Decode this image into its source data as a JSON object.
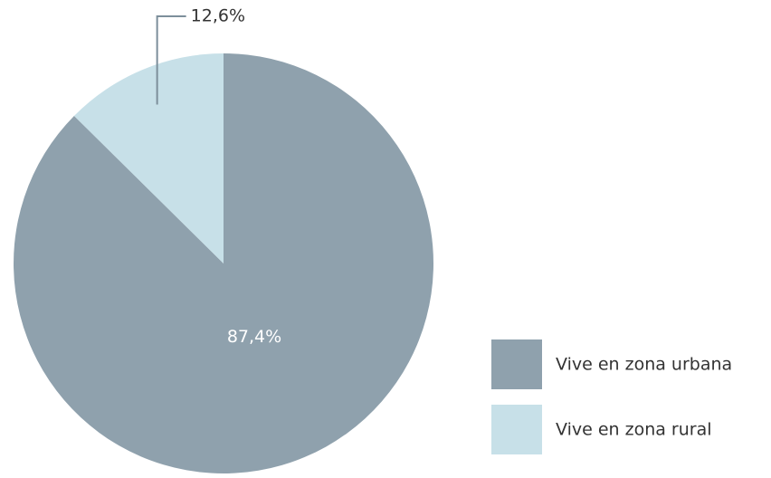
{
  "chart_data": {
    "type": "pie",
    "categories": [
      "Vive en zona urbana",
      "Vive en zona rural"
    ],
    "values": [
      87.4,
      12.6
    ],
    "value_labels": [
      "87,4%",
      "12,6%"
    ],
    "colors": [
      "#8fa1ad",
      "#c7e0e8"
    ]
  }
}
